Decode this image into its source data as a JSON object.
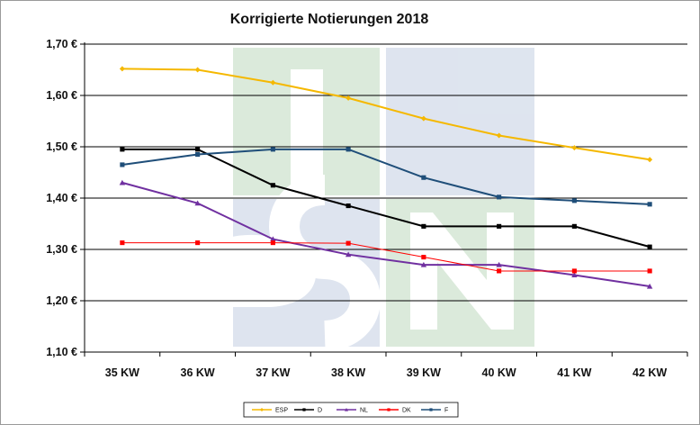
{
  "chart_data": {
    "type": "line",
    "title": "Korrigierte Notierungen 2018",
    "xlabel": "",
    "ylabel": "",
    "categories": [
      "35 KW",
      "36 KW",
      "37 KW",
      "38 KW",
      "39 KW",
      "40 KW",
      "41 KW",
      "42 KW"
    ],
    "y_ticks": [
      "1,10 €",
      "1,20 €",
      "1,30 €",
      "1,40 €",
      "1,50 €",
      "1,60 €",
      "1,70 €"
    ],
    "ylim": [
      1.1,
      1.7
    ],
    "grid": "horizontal",
    "legend_position": "bottom",
    "series": [
      {
        "name": "ESP",
        "color": "#f5b800",
        "marker": "diamond",
        "values": [
          1.652,
          1.65,
          1.625,
          1.595,
          1.555,
          1.522,
          1.498,
          1.475
        ]
      },
      {
        "name": "D",
        "color": "#000000",
        "marker": "square",
        "values": [
          1.495,
          1.495,
          1.425,
          1.385,
          1.345,
          1.345,
          1.345,
          1.305
        ]
      },
      {
        "name": "NL",
        "color": "#7030a0",
        "marker": "triangle",
        "values": [
          1.43,
          1.39,
          1.32,
          1.29,
          1.27,
          1.27,
          1.25,
          1.228
        ]
      },
      {
        "name": "DK",
        "color": "#ff0000",
        "marker": "square",
        "values": [
          1.313,
          1.313,
          1.313,
          1.312,
          1.285,
          1.258,
          1.258,
          1.258
        ]
      },
      {
        "name": "F",
        "color": "#1f4e79",
        "marker": "square",
        "values": [
          1.465,
          1.485,
          1.495,
          1.495,
          1.44,
          1.402,
          1.395,
          1.388
        ]
      }
    ]
  }
}
